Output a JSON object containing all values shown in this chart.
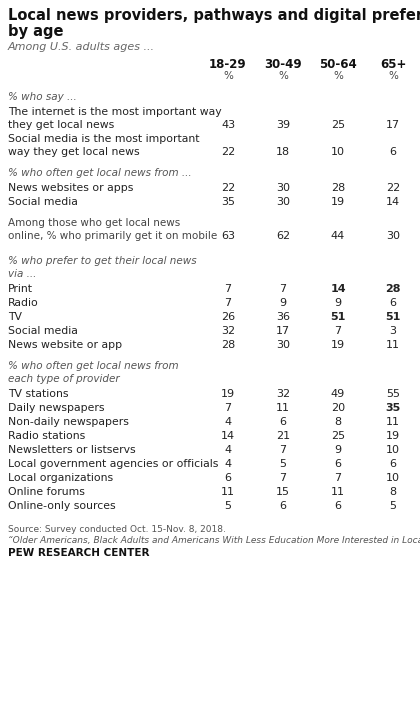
{
  "title_line1": "Local news providers, pathways and digital preferences,",
  "title_line2": "by age",
  "subtitle": "Among U.S. adults ages ...",
  "columns": [
    "18-29",
    "30-49",
    "50-64",
    "65+"
  ],
  "footer1": "Source: Survey conducted Oct. 15-Nov. 8, 2018.",
  "footer2": "“Older Americans, Black Adults and Americans With Less Education More Interested in Local News”",
  "footer3": "PEW RESEARCH CENTER",
  "bg_color": "#ffffff",
  "sections": [
    {
      "header": "% who say ...",
      "header_italic": true,
      "among_style": false,
      "rows": [
        {
          "label": "The internet is the most important way\nthey get local news",
          "values": [
            "43",
            "39",
            "25",
            "17"
          ],
          "bold_cols": []
        },
        {
          "label": "Social media is the most important\nway they get local news",
          "values": [
            "22",
            "18",
            "10",
            "6"
          ],
          "bold_cols": []
        }
      ]
    },
    {
      "header": "% who often get local news from ...",
      "header_italic": true,
      "among_style": false,
      "rows": [
        {
          "label": "News websites or apps",
          "values": [
            "22",
            "30",
            "28",
            "22"
          ],
          "bold_cols": []
        },
        {
          "label": "Social media",
          "values": [
            "35",
            "30",
            "19",
            "14"
          ],
          "bold_cols": []
        }
      ]
    },
    {
      "header": "Among those who get local news\nonline, % who primarily get it on mobile",
      "header_italic": false,
      "among_style": true,
      "rows": [
        {
          "label": "",
          "values": [
            "63",
            "62",
            "44",
            "30"
          ],
          "bold_cols": []
        }
      ]
    },
    {
      "header": "% who prefer to get their local news\nvia ...",
      "header_italic": true,
      "among_style": false,
      "rows": [
        {
          "label": "Print",
          "values": [
            "7",
            "7",
            "14",
            "28"
          ],
          "bold_cols": [
            2,
            3
          ]
        },
        {
          "label": "Radio",
          "values": [
            "7",
            "9",
            "9",
            "6"
          ],
          "bold_cols": []
        },
        {
          "label": "TV",
          "values": [
            "26",
            "36",
            "51",
            "51"
          ],
          "bold_cols": [
            2,
            3
          ]
        },
        {
          "label": "Social media",
          "values": [
            "32",
            "17",
            "7",
            "3"
          ],
          "bold_cols": []
        },
        {
          "label": "News website or app",
          "values": [
            "28",
            "30",
            "19",
            "11"
          ],
          "bold_cols": []
        }
      ]
    },
    {
      "header": "% who often get local news from\neach type of provider",
      "header_italic": true,
      "among_style": false,
      "rows": [
        {
          "label": "TV stations",
          "values": [
            "19",
            "32",
            "49",
            "55"
          ],
          "bold_cols": []
        },
        {
          "label": "Daily newspapers",
          "values": [
            "7",
            "11",
            "20",
            "35"
          ],
          "bold_cols": [
            3
          ]
        },
        {
          "label": "Non-daily newspapers",
          "values": [
            "4",
            "6",
            "8",
            "11"
          ],
          "bold_cols": []
        },
        {
          "label": "Radio stations",
          "values": [
            "14",
            "21",
            "25",
            "19"
          ],
          "bold_cols": []
        },
        {
          "label": "Newsletters or listservs",
          "values": [
            "4",
            "7",
            "9",
            "10"
          ],
          "bold_cols": []
        },
        {
          "label": "Local government agencies or officials",
          "values": [
            "4",
            "5",
            "6",
            "6"
          ],
          "bold_cols": []
        },
        {
          "label": "Local organizations",
          "values": [
            "6",
            "7",
            "7",
            "10"
          ],
          "bold_cols": []
        },
        {
          "label": "Online forums",
          "values": [
            "11",
            "15",
            "11",
            "8"
          ],
          "bold_cols": []
        },
        {
          "label": "Online-only sources",
          "values": [
            "5",
            "6",
            "6",
            "5"
          ],
          "bold_cols": []
        }
      ]
    }
  ]
}
